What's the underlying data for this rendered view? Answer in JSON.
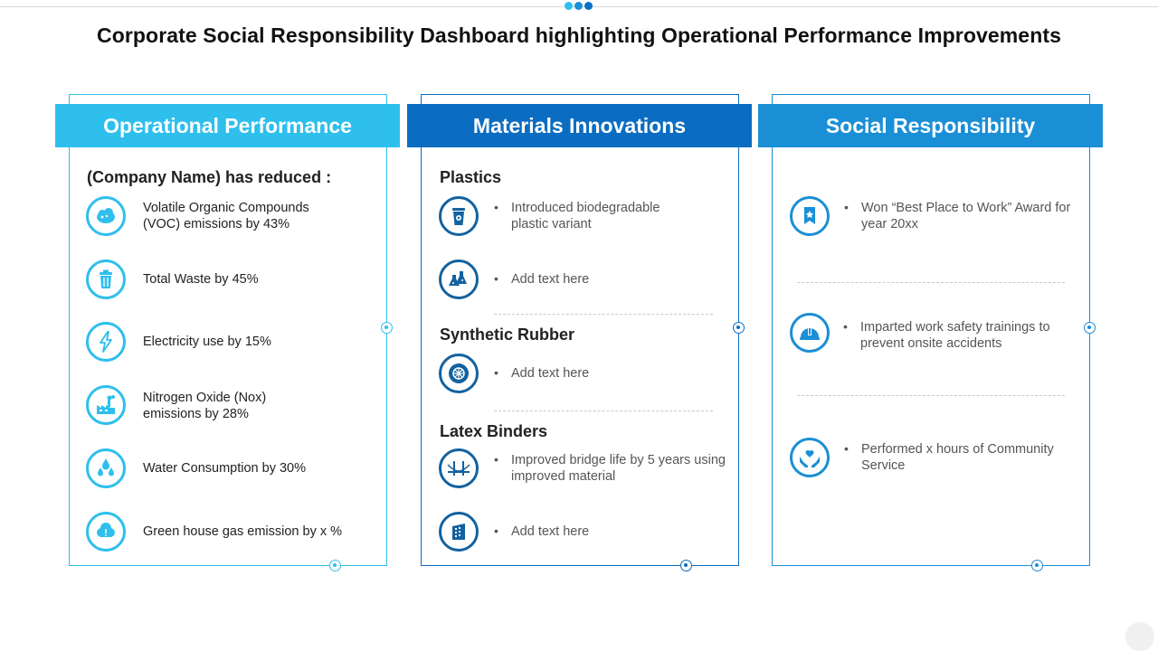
{
  "title": "Corporate Social Responsibility Dashboard highlighting Operational Performance Improvements",
  "colors": {
    "light_blue": "#2ebfed",
    "mid_blue": "#1a8fd6",
    "dark_blue": "#0b6dc2",
    "navy": "#13629f"
  },
  "panels": [
    {
      "header": "Operational Performance",
      "intro": "(Company Name) has reduced :",
      "items": [
        {
          "icon": "cloud-icon",
          "text": "Volatile Organic Compounds (VOC) emissions by 43%"
        },
        {
          "icon": "trash-icon",
          "text": "Total Waste by 45%"
        },
        {
          "icon": "lightning-icon",
          "text": "Electricity use by 15%"
        },
        {
          "icon": "factory-icon",
          "text": "Nitrogen Oxide (Nox) emissions by 28%"
        },
        {
          "icon": "water-drops-icon",
          "text": "Water Consumption by 30%"
        },
        {
          "icon": "smog-cloud-icon",
          "text": "Green house gas emission by x %"
        }
      ]
    },
    {
      "header": "Materials Innovations",
      "sections": [
        {
          "title": "Plastics",
          "items": [
            {
              "icon": "cup-icon",
              "text": "Introduced biodegradable plastic variant"
            },
            {
              "icon": "flasks-icon",
              "text": "Add text here"
            }
          ]
        },
        {
          "title": "Synthetic Rubber",
          "items": [
            {
              "icon": "tire-icon",
              "text": "Add text here"
            }
          ]
        },
        {
          "title": "Latex Binders",
          "items": [
            {
              "icon": "bridge-icon",
              "text": "Improved bridge life by 5 years using improved material"
            },
            {
              "icon": "building-icon",
              "text": "Add text here"
            }
          ]
        }
      ]
    },
    {
      "header": "Social Responsibility",
      "items": [
        {
          "icon": "award-ribbon-icon",
          "text": "Won “Best Place to Work” Award for year 20xx"
        },
        {
          "icon": "safety-helmet-icon",
          "text": "Imparted work safety trainings to prevent onsite accidents"
        },
        {
          "icon": "heart-hands-icon",
          "text": "Performed x hours of Community Service"
        }
      ]
    }
  ]
}
